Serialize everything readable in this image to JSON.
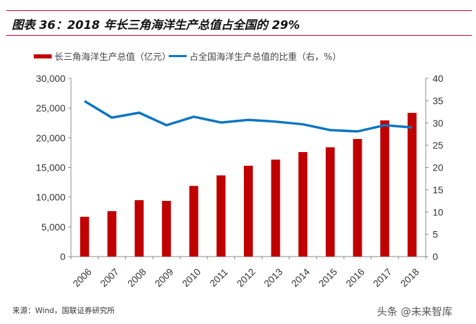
{
  "title": "图表 36：2018 年长三角海洋生产总值占全国的 29%",
  "source": "来源：Wind，国联证券研究所",
  "watermark": "头条 @未来智库",
  "chart_data": {
    "type": "bar+line",
    "categories": [
      "2006",
      "2007",
      "2008",
      "2009",
      "2010",
      "2011",
      "2012",
      "2013",
      "2014",
      "2015",
      "2016",
      "2017",
      "2018"
    ],
    "series": [
      {
        "name": "长三角海洋生产总值（亿元）",
        "type": "bar",
        "axis": "left",
        "color": "#c00000",
        "values": [
          6700,
          7650,
          9500,
          9380,
          11900,
          13670,
          15300,
          16330,
          17600,
          18400,
          19800,
          22930,
          24200
        ]
      },
      {
        "name": "占全国海洋生产总值的比重（右，%）",
        "type": "line",
        "axis": "right",
        "color": "#0a75c2",
        "values": [
          34.9,
          31.2,
          32.3,
          29.5,
          31.4,
          30.1,
          30.7,
          30.3,
          29.7,
          28.4,
          28.1,
          29.5,
          29.0
        ]
      }
    ],
    "left_axis": {
      "ylim": [
        0,
        30000
      ],
      "ticks": [
        "0",
        "5,000",
        "10,000",
        "15,000",
        "20,000",
        "25,000",
        "30,000"
      ]
    },
    "right_axis": {
      "ylim": [
        0,
        40
      ],
      "ticks": [
        "0",
        "5",
        "10",
        "15",
        "20",
        "25",
        "30",
        "35",
        "40"
      ]
    },
    "legend": "top",
    "grid": false
  }
}
